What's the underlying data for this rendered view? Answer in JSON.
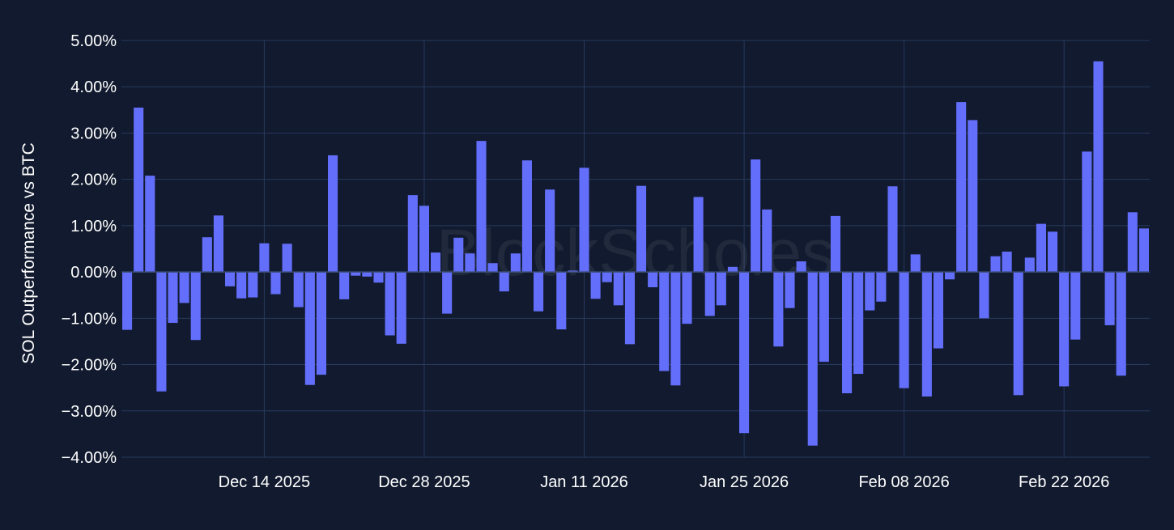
{
  "chart_data": {
    "type": "bar",
    "ylabel": "SOL Outperformance vs BTC",
    "y_unit": "%",
    "ylim": [
      -4.0,
      5.0
    ],
    "y_ticks": [
      5,
      4,
      3,
      2,
      1,
      0,
      -1,
      -2,
      -3,
      -4
    ],
    "y_tick_labels": [
      "5.00%",
      "4.00%",
      "3.00%",
      "2.00%",
      "1.00%",
      "0.00%",
      "−1.00%",
      "−2.00%",
      "−3.00%",
      "−4.00%"
    ],
    "x_start_date": "2025-12-02",
    "x_tick_labels": [
      "Dec 14 2025",
      "Dec 28 2025",
      "Jan 11 2026",
      "Jan 25 2026",
      "Feb 08 2026",
      "Feb 22 2026"
    ],
    "x_tick_dates": [
      "2025-12-14",
      "2025-12-28",
      "2026-01-11",
      "2026-01-25",
      "2026-02-08",
      "2026-02-22"
    ],
    "grid": true,
    "bar_color": "#636efa",
    "background_color": "#111a2e",
    "grid_color": "#283a5e",
    "watermark": "BlockScholes",
    "values": [
      -1.25,
      3.55,
      2.08,
      -2.58,
      -1.1,
      -0.67,
      -1.47,
      0.75,
      1.22,
      -0.31,
      -0.57,
      -0.55,
      0.62,
      -0.48,
      0.61,
      -0.76,
      -2.44,
      -2.22,
      2.52,
      -0.59,
      -0.08,
      -0.1,
      -0.23,
      -1.37,
      -1.55,
      1.66,
      1.43,
      0.42,
      -0.9,
      0.74,
      0.4,
      2.83,
      0.19,
      -0.42,
      0.4,
      2.41,
      -0.85,
      1.78,
      -1.24,
      0.03,
      2.25,
      -0.58,
      -0.22,
      -0.72,
      -1.56,
      1.86,
      -0.33,
      -2.14,
      -2.45,
      -1.12,
      1.62,
      -0.95,
      -0.72,
      0.11,
      -3.48,
      2.43,
      1.35,
      -1.61,
      -0.78,
      0.23,
      -3.75,
      -1.94,
      1.21,
      -2.62,
      -2.2,
      -0.83,
      -0.64,
      1.85,
      -2.51,
      0.38,
      -2.69,
      -1.65,
      -0.16,
      3.67,
      3.28,
      -1.0,
      0.34,
      0.44,
      -2.66,
      0.31,
      1.04,
      0.87,
      -2.47,
      -1.46,
      2.6,
      4.55,
      -1.15,
      -2.24,
      1.29,
      0.94
    ]
  }
}
